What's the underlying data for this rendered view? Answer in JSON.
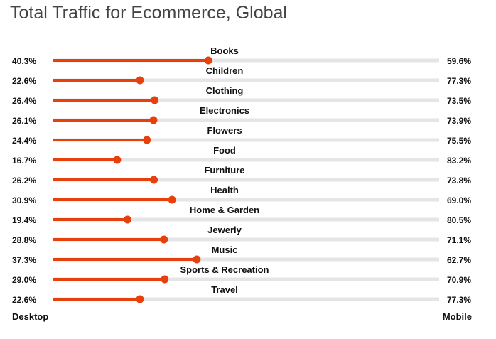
{
  "title": "Total Traffic for Ecommerce, Global",
  "legend": {
    "left_label": "Desktop",
    "right_label": "Mobile"
  },
  "colors": {
    "accent": "#e8400c",
    "track": "#e5e5e5",
    "text": "#111111",
    "title": "#444444"
  },
  "chart_data": {
    "type": "bar",
    "title": "Total Traffic for Ecommerce, Global",
    "xlim": [
      0,
      100
    ],
    "unit": "%",
    "categories": [
      "Books",
      "Children",
      "Clothing",
      "Electronics",
      "Flowers",
      "Food",
      "Furniture",
      "Health",
      "Home & Garden",
      "Jewerly",
      "Music",
      "Sports & Recreation",
      "Travel"
    ],
    "series": [
      {
        "name": "Desktop",
        "values": [
          40.3,
          22.6,
          26.4,
          26.1,
          24.4,
          16.7,
          26.2,
          30.9,
          19.4,
          28.8,
          37.3,
          29.0,
          22.6
        ]
      },
      {
        "name": "Mobile",
        "values": [
          59.6,
          77.3,
          73.5,
          73.9,
          75.5,
          83.2,
          73.8,
          69.0,
          80.5,
          71.1,
          62.7,
          70.9,
          77.3
        ]
      }
    ]
  }
}
